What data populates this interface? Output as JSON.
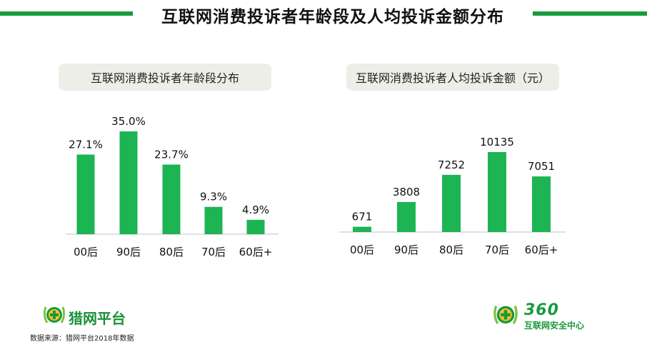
{
  "page": {
    "title": "互联网消费投诉者年龄段及人均投诉金额分布",
    "source": "数据来源：猎网平台2018年数据",
    "logo_left_text": "猎网平台",
    "logo_right_number": "360",
    "logo_right_text": "互联网安全中心",
    "colors": {
      "accent": "#1a9a3c",
      "bar": "#1db454",
      "subtitle_bg": "#eeeee8"
    }
  },
  "chart_data": [
    {
      "type": "bar",
      "title": "互联网消费投诉者年龄段分布",
      "categories": [
        "00后",
        "90后",
        "80后",
        "70后",
        "60后+"
      ],
      "values": [
        27.1,
        35.0,
        23.7,
        9.3,
        4.9
      ],
      "value_labels": [
        "27.1%",
        "35.0%",
        "23.7%",
        "9.3%",
        "4.9%"
      ],
      "unit": "%",
      "ylim": [
        0,
        35.0
      ],
      "grid": false
    },
    {
      "type": "bar",
      "title": "互联网消费投诉者人均投诉金额（元）",
      "categories": [
        "00后",
        "90后",
        "80后",
        "70后",
        "60后+"
      ],
      "values": [
        671,
        3808,
        7252,
        10135,
        7051
      ],
      "value_labels": [
        "671",
        "3808",
        "7252",
        "10135",
        "7051"
      ],
      "unit": "元",
      "ylim": [
        0,
        10135
      ],
      "grid": false
    }
  ]
}
